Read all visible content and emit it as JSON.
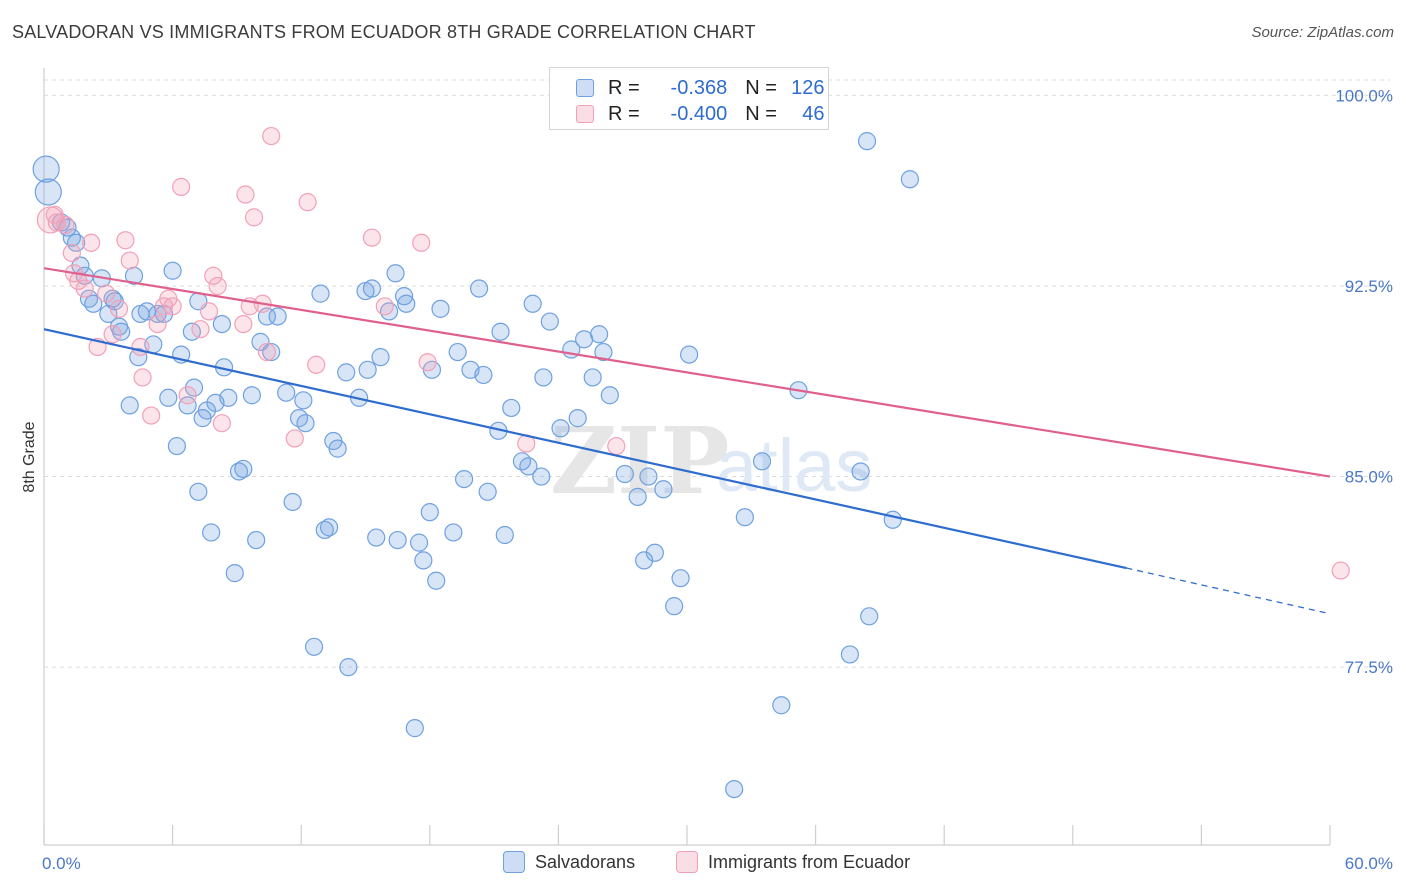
{
  "title": "SALVADORAN VS IMMIGRANTS FROM ECUADOR 8TH GRADE CORRELATION CHART",
  "source": "Source: ZipAtlas.com",
  "watermark": {
    "zip": "ZIP",
    "atlas": "atlas"
  },
  "legend": {
    "r_label": "R =",
    "n_label": "N =",
    "rows": [
      {
        "r": "-0.368",
        "n": "126",
        "color": "#6fa1e0"
      },
      {
        "r": "-0.400",
        "n": "46",
        "color": "#f2a0b8"
      }
    ]
  },
  "bottom_legend": [
    {
      "label": "Salvadorans",
      "color": "#6fa1e0"
    },
    {
      "label": "Immigrants from Ecuador",
      "color": "#f2a0b8"
    }
  ],
  "chart_data": {
    "type": "scatter",
    "title": "SALVADORAN VS IMMIGRANTS FROM ECUADOR 8TH GRADE CORRELATION CHART",
    "xlabel": "",
    "ylabel": "8th Grade",
    "xlim": [
      0,
      60
    ],
    "ylim": [
      70.5,
      101
    ],
    "x_tick_labels": [
      "0.0%",
      "60.0%"
    ],
    "y_ticks": [
      100,
      92.5,
      85,
      77.5
    ],
    "y_tick_labels": [
      "100.0%",
      "92.5%",
      "85.0%",
      "77.5%"
    ],
    "grid": true,
    "legend_position": "top-center",
    "series": [
      {
        "name": "Salvadorans",
        "color": "#6fa1e0",
        "trend": {
          "x": [
            0,
            50.5
          ],
          "y": [
            90.8,
            81.4
          ],
          "dashed_to": [
            60,
            79.6
          ]
        },
        "points": [
          [
            0.1,
            97.1
          ],
          [
            0.2,
            96.2
          ],
          [
            0.8,
            95.0
          ],
          [
            1.1,
            94.8
          ],
          [
            1.3,
            94.4
          ],
          [
            1.5,
            94.2
          ],
          [
            1.7,
            93.3
          ],
          [
            1.9,
            92.9
          ],
          [
            2.1,
            92.0
          ],
          [
            2.3,
            91.8
          ],
          [
            2.7,
            92.8
          ],
          [
            3.0,
            91.4
          ],
          [
            3.2,
            92.0
          ],
          [
            3.3,
            91.9
          ],
          [
            3.5,
            90.9
          ],
          [
            3.6,
            90.7
          ],
          [
            4.0,
            87.8
          ],
          [
            4.2,
            92.9
          ],
          [
            4.4,
            89.7
          ],
          [
            4.8,
            91.5
          ],
          [
            5.1,
            90.2
          ],
          [
            5.3,
            91.4
          ],
          [
            5.6,
            91.4
          ],
          [
            5.8,
            88.1
          ],
          [
            6.0,
            93.1
          ],
          [
            6.2,
            86.2
          ],
          [
            6.4,
            89.8
          ],
          [
            6.7,
            87.8
          ],
          [
            6.9,
            90.7
          ],
          [
            7.0,
            88.5
          ],
          [
            7.2,
            84.4
          ],
          [
            7.4,
            87.3
          ],
          [
            7.6,
            87.6
          ],
          [
            7.8,
            82.8
          ],
          [
            8.0,
            87.9
          ],
          [
            8.3,
            91.0
          ],
          [
            8.4,
            89.3
          ],
          [
            8.6,
            88.1
          ],
          [
            8.9,
            81.2
          ],
          [
            9.1,
            85.2
          ],
          [
            9.3,
            85.3
          ],
          [
            9.7,
            88.2
          ],
          [
            10.1,
            90.3
          ],
          [
            10.4,
            91.3
          ],
          [
            10.6,
            89.9
          ],
          [
            10.9,
            91.3
          ],
          [
            11.3,
            88.3
          ],
          [
            11.6,
            84.0
          ],
          [
            11.9,
            87.3
          ],
          [
            12.2,
            87.1
          ],
          [
            12.6,
            78.3
          ],
          [
            12.9,
            92.2
          ],
          [
            13.1,
            82.9
          ],
          [
            13.3,
            83.0
          ],
          [
            13.5,
            86.4
          ],
          [
            13.7,
            86.1
          ],
          [
            14.1,
            89.1
          ],
          [
            14.2,
            77.5
          ],
          [
            14.7,
            88.1
          ],
          [
            15.0,
            92.3
          ],
          [
            15.1,
            89.2
          ],
          [
            15.3,
            92.4
          ],
          [
            15.5,
            82.6
          ],
          [
            15.7,
            89.7
          ],
          [
            16.1,
            91.5
          ],
          [
            16.4,
            93.0
          ],
          [
            16.5,
            82.5
          ],
          [
            16.8,
            92.1
          ],
          [
            16.9,
            91.8
          ],
          [
            17.3,
            75.1
          ],
          [
            17.5,
            82.4
          ],
          [
            17.7,
            81.7
          ],
          [
            18.0,
            83.6
          ],
          [
            18.1,
            89.2
          ],
          [
            18.3,
            80.9
          ],
          [
            18.5,
            91.6
          ],
          [
            19.3,
            89.9
          ],
          [
            19.6,
            84.9
          ],
          [
            19.9,
            89.2
          ],
          [
            20.3,
            92.4
          ],
          [
            20.5,
            89.0
          ],
          [
            20.7,
            84.4
          ],
          [
            21.2,
            86.8
          ],
          [
            21.3,
            90.7
          ],
          [
            21.5,
            82.7
          ],
          [
            21.8,
            87.7
          ],
          [
            22.3,
            85.6
          ],
          [
            22.6,
            85.4
          ],
          [
            22.8,
            91.8
          ],
          [
            23.2,
            85.0
          ],
          [
            23.3,
            88.9
          ],
          [
            23.6,
            91.1
          ],
          [
            24.6,
            90.0
          ],
          [
            24.9,
            87.3
          ],
          [
            25.2,
            90.4
          ],
          [
            25.6,
            88.9
          ],
          [
            25.9,
            90.6
          ],
          [
            26.1,
            89.9
          ],
          [
            26.4,
            88.2
          ],
          [
            26.5,
            99.9
          ],
          [
            27.1,
            85.1
          ],
          [
            27.7,
            84.2
          ],
          [
            28.0,
            81.7
          ],
          [
            28.2,
            85.0
          ],
          [
            28.5,
            82.0
          ],
          [
            28.9,
            84.5
          ],
          [
            29.4,
            79.9
          ],
          [
            29.7,
            81.0
          ],
          [
            30.1,
            89.8
          ],
          [
            32.2,
            72.7
          ],
          [
            32.7,
            83.4
          ],
          [
            33.5,
            85.6
          ],
          [
            34.4,
            76.0
          ],
          [
            35.2,
            88.4
          ],
          [
            37.6,
            78.0
          ],
          [
            38.1,
            85.2
          ],
          [
            38.4,
            98.2
          ],
          [
            38.5,
            79.5
          ],
          [
            39.6,
            83.3
          ],
          [
            40.4,
            96.7
          ],
          [
            4.5,
            91.4
          ],
          [
            7.2,
            91.9
          ],
          [
            9.9,
            82.5
          ],
          [
            12.1,
            88.0
          ],
          [
            19.1,
            82.8
          ],
          [
            24.1,
            86.9
          ]
        ]
      },
      {
        "name": "Immigrants from Ecuador",
        "color": "#f2a0b8",
        "trend": {
          "x": [
            0,
            60
          ],
          "y": [
            93.2,
            85.0
          ]
        },
        "points": [
          [
            0.3,
            95.1
          ],
          [
            0.6,
            95.0
          ],
          [
            1.0,
            94.9
          ],
          [
            1.3,
            93.8
          ],
          [
            1.4,
            93.0
          ],
          [
            1.6,
            92.7
          ],
          [
            1.9,
            92.4
          ],
          [
            2.2,
            94.2
          ],
          [
            2.5,
            90.1
          ],
          [
            2.9,
            92.2
          ],
          [
            3.2,
            90.6
          ],
          [
            3.5,
            91.6
          ],
          [
            3.8,
            94.3
          ],
          [
            4.0,
            93.5
          ],
          [
            4.5,
            90.1
          ],
          [
            4.6,
            88.9
          ],
          [
            5.0,
            87.4
          ],
          [
            5.3,
            91.0
          ],
          [
            5.6,
            91.7
          ],
          [
            5.8,
            92.0
          ],
          [
            6.0,
            91.7
          ],
          [
            6.4,
            96.4
          ],
          [
            6.7,
            88.2
          ],
          [
            7.3,
            90.8
          ],
          [
            7.7,
            91.5
          ],
          [
            7.9,
            92.9
          ],
          [
            8.1,
            92.5
          ],
          [
            8.3,
            87.1
          ],
          [
            9.3,
            91.0
          ],
          [
            9.4,
            96.1
          ],
          [
            9.6,
            91.7
          ],
          [
            9.8,
            95.2
          ],
          [
            10.2,
            91.8
          ],
          [
            10.4,
            89.9
          ],
          [
            10.6,
            98.4
          ],
          [
            11.7,
            86.5
          ],
          [
            12.3,
            95.8
          ],
          [
            12.7,
            89.4
          ],
          [
            15.3,
            94.4
          ],
          [
            15.9,
            91.7
          ],
          [
            17.6,
            94.2
          ],
          [
            17.9,
            89.5
          ],
          [
            22.5,
            86.3
          ],
          [
            26.7,
            86.2
          ],
          [
            60.5,
            81.3
          ],
          [
            0.5,
            95.3
          ]
        ]
      }
    ]
  }
}
